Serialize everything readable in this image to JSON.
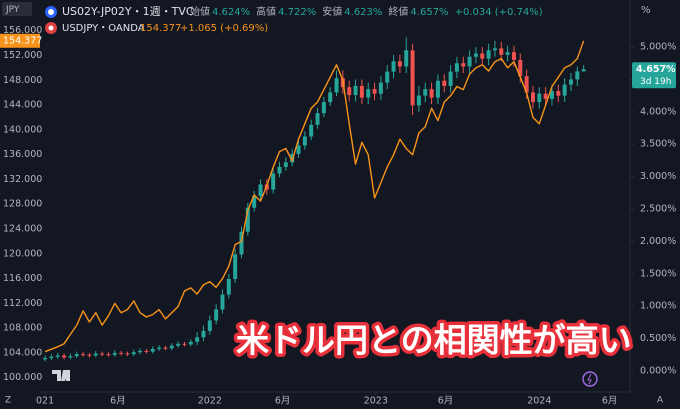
{
  "chart_data": {
    "type": "candlestick",
    "title": "US02Y-JP02Y・1週・TVC",
    "ohlc": [
      {
        "label": "始値",
        "value": "4.624%"
      },
      {
        "label": "高値",
        "value": "4.722%"
      },
      {
        "label": "安値",
        "value": "4.623%"
      },
      {
        "label": "終値",
        "value": "4.657%"
      }
    ],
    "change": "+0.034 (+0.74%)",
    "countdown": "3d 19h",
    "y_unit": "JPY",
    "y2_unit": "%",
    "zoom_button": "Z",
    "auto_button": "A",
    "overlay_text": "米ドル円との相関性が高い",
    "grid": false,
    "xlim": [
      -0.8,
      92
    ],
    "xticks": [
      {
        "value": 0,
        "label": "021"
      },
      {
        "value": 11.5,
        "label": "6月"
      },
      {
        "value": 26,
        "label": "2022"
      },
      {
        "value": 37.5,
        "label": "6月"
      },
      {
        "value": 52.2,
        "label": "2023"
      },
      {
        "value": 63.2,
        "label": "6月"
      },
      {
        "value": 78,
        "label": "2024"
      },
      {
        "value": 89.1,
        "label": "6月"
      }
    ],
    "ylim": [
      97.7,
      158.7
    ],
    "yticks": [
      {
        "value": 100,
        "label": "100.000"
      },
      {
        "value": 104,
        "label": "104.000"
      },
      {
        "value": 108,
        "label": "108.000"
      },
      {
        "value": 112,
        "label": "112.000"
      },
      {
        "value": 116,
        "label": "116.000"
      },
      {
        "value": 120,
        "label": "120.000"
      },
      {
        "value": 124,
        "label": "124.000"
      },
      {
        "value": 128,
        "label": "128.000"
      },
      {
        "value": 132,
        "label": "132.000"
      },
      {
        "value": 136,
        "label": "136.000"
      },
      {
        "value": 140,
        "label": "140.000"
      },
      {
        "value": 144,
        "label": "144.000"
      },
      {
        "value": 148,
        "label": "148.000"
      },
      {
        "value": 152,
        "label": "152.000"
      },
      {
        "value": 156,
        "label": "156.000"
      }
    ],
    "y2lim": [
      -0.324,
      5.51
    ],
    "y2ticks": [
      {
        "value": 0,
        "label": "0.000%"
      },
      {
        "value": 0.5,
        "label": "0.500%"
      },
      {
        "value": 1,
        "label": "1.000%"
      },
      {
        "value": 1.5,
        "label": "1.500%"
      },
      {
        "value": 2,
        "label": "2.000%"
      },
      {
        "value": 2.5,
        "label": "2.500%"
      },
      {
        "value": 3,
        "label": "3.000%"
      },
      {
        "value": 3.5,
        "label": "3.500%"
      },
      {
        "value": 4,
        "label": "4.000%"
      },
      {
        "value": 4.5,
        "label": "4.500%"
      },
      {
        "value": 5,
        "label": "5.000%"
      }
    ],
    "series": [
      {
        "type": "candlestick",
        "axis": "y2",
        "up_color": "#26a69a",
        "down_color": "#ef5350",
        "open": [
          0.18,
          0.2,
          0.22,
          0.24,
          0.21,
          0.23,
          0.26,
          0.25,
          0.24,
          0.27,
          0.26,
          0.25,
          0.28,
          0.27,
          0.26,
          0.29,
          0.31,
          0.3,
          0.34,
          0.36,
          0.35,
          0.39,
          0.42,
          0.41,
          0.45,
          0.52,
          0.62,
          0.78,
          0.95,
          1.18,
          1.42,
          1.8,
          2.15,
          2.52,
          2.7,
          2.88,
          2.8,
          3.05,
          3.15,
          3.22,
          3.35,
          3.48,
          3.62,
          3.8,
          3.98,
          4.15,
          4.3,
          4.52,
          4.38,
          4.26,
          4.4,
          4.22,
          4.35,
          4.28,
          4.45,
          4.62,
          4.78,
          4.7,
          4.95,
          4.1,
          4.25,
          4.35,
          4.22,
          4.48,
          4.4,
          4.62,
          4.75,
          4.7,
          4.85,
          4.9,
          4.82,
          4.95,
          4.98,
          4.88,
          4.92,
          4.8,
          4.55,
          4.3,
          4.15,
          4.28,
          4.2,
          4.32,
          4.25,
          4.42,
          4.5,
          4.624
        ],
        "high": [
          0.24,
          0.26,
          0.28,
          0.27,
          0.27,
          0.3,
          0.29,
          0.28,
          0.31,
          0.3,
          0.29,
          0.32,
          0.31,
          0.3,
          0.33,
          0.35,
          0.34,
          0.38,
          0.4,
          0.39,
          0.43,
          0.46,
          0.45,
          0.49,
          0.6,
          0.7,
          0.86,
          1.03,
          1.26,
          1.5,
          1.88,
          2.23,
          2.6,
          2.78,
          2.96,
          2.96,
          3.13,
          3.23,
          3.3,
          3.43,
          3.56,
          3.7,
          3.88,
          4.06,
          4.23,
          4.38,
          4.64,
          4.64,
          4.48,
          4.5,
          4.5,
          4.45,
          4.45,
          4.55,
          4.72,
          4.88,
          4.88,
          5.15,
          5.05,
          4.4,
          4.45,
          4.45,
          4.58,
          4.58,
          4.72,
          4.85,
          4.85,
          4.95,
          5.0,
          5.0,
          5.05,
          5.1,
          5.08,
          5.02,
          5.02,
          4.9,
          4.65,
          4.4,
          4.38,
          4.38,
          4.42,
          4.42,
          4.52,
          4.6,
          4.7,
          4.722
        ],
        "low": [
          0.15,
          0.17,
          0.19,
          0.18,
          0.18,
          0.2,
          0.22,
          0.21,
          0.21,
          0.23,
          0.22,
          0.22,
          0.24,
          0.23,
          0.23,
          0.26,
          0.27,
          0.27,
          0.31,
          0.32,
          0.32,
          0.36,
          0.38,
          0.38,
          0.4,
          0.46,
          0.56,
          0.72,
          0.89,
          1.12,
          1.36,
          1.74,
          2.09,
          2.46,
          2.64,
          2.72,
          2.74,
          2.99,
          3.09,
          3.16,
          3.29,
          3.42,
          3.56,
          3.74,
          3.92,
          4.09,
          4.24,
          4.28,
          4.16,
          4.16,
          4.12,
          4.12,
          4.18,
          4.18,
          4.35,
          4.52,
          4.6,
          4.6,
          3.95,
          4.0,
          4.15,
          4.12,
          4.12,
          4.3,
          4.3,
          4.52,
          4.6,
          4.6,
          4.75,
          4.72,
          4.72,
          4.85,
          4.78,
          4.78,
          4.7,
          4.45,
          4.2,
          4.05,
          4.05,
          4.1,
          4.1,
          4.15,
          4.15,
          4.32,
          4.4,
          4.623
        ],
        "close": [
          0.2,
          0.22,
          0.24,
          0.21,
          0.23,
          0.26,
          0.25,
          0.24,
          0.27,
          0.26,
          0.25,
          0.28,
          0.27,
          0.26,
          0.29,
          0.31,
          0.3,
          0.34,
          0.36,
          0.35,
          0.39,
          0.42,
          0.41,
          0.45,
          0.52,
          0.62,
          0.78,
          0.95,
          1.18,
          1.42,
          1.8,
          2.15,
          2.52,
          2.7,
          2.88,
          2.8,
          3.05,
          3.15,
          3.22,
          3.35,
          3.48,
          3.62,
          3.8,
          3.98,
          4.15,
          4.3,
          4.52,
          4.38,
          4.26,
          4.4,
          4.22,
          4.35,
          4.28,
          4.45,
          4.62,
          4.78,
          4.7,
          4.95,
          4.1,
          4.25,
          4.35,
          4.22,
          4.48,
          4.4,
          4.62,
          4.75,
          4.7,
          4.85,
          4.9,
          4.82,
          4.95,
          4.98,
          4.88,
          4.92,
          4.8,
          4.55,
          4.3,
          4.15,
          4.28,
          4.2,
          4.32,
          4.25,
          4.42,
          4.5,
          4.624,
          4.657
        ]
      },
      {
        "type": "line",
        "axis": "y",
        "name": "USDJPY・OANDA",
        "color": "#f7931a",
        "change": "+1.065 (+0.69%)",
        "values": [
          104.2,
          104.6,
          105.0,
          105.5,
          107.0,
          108.5,
          110.8,
          109.0,
          110.5,
          108.5,
          110.0,
          112.0,
          110.5,
          111.0,
          112.4,
          110.5,
          109.8,
          110.2,
          111.0,
          109.5,
          110.5,
          111.5,
          114.0,
          114.5,
          113.5,
          115.0,
          115.5,
          114.6,
          116.0,
          118.0,
          121.5,
          122.0,
          127.0,
          129.5,
          128.5,
          131.0,
          134.0,
          136.5,
          137.0,
          135.0,
          138.5,
          141.0,
          143.5,
          144.5,
          146.5,
          148.5,
          150.5,
          148.0,
          141.0,
          134.5,
          138.0,
          136.0,
          129.0,
          131.5,
          134.0,
          136.0,
          138.5,
          137.0,
          136.0,
          139.5,
          140.5,
          143.5,
          141.5,
          144.5,
          145.5,
          147.0,
          146.5,
          149.0,
          150.0,
          150.5,
          149.5,
          151.0,
          151.5,
          150.0,
          151.0,
          148.5,
          146.0,
          142.0,
          141.0,
          144.0,
          147.0,
          148.5,
          150.0,
          150.5,
          151.5,
          154.377
        ]
      }
    ]
  }
}
